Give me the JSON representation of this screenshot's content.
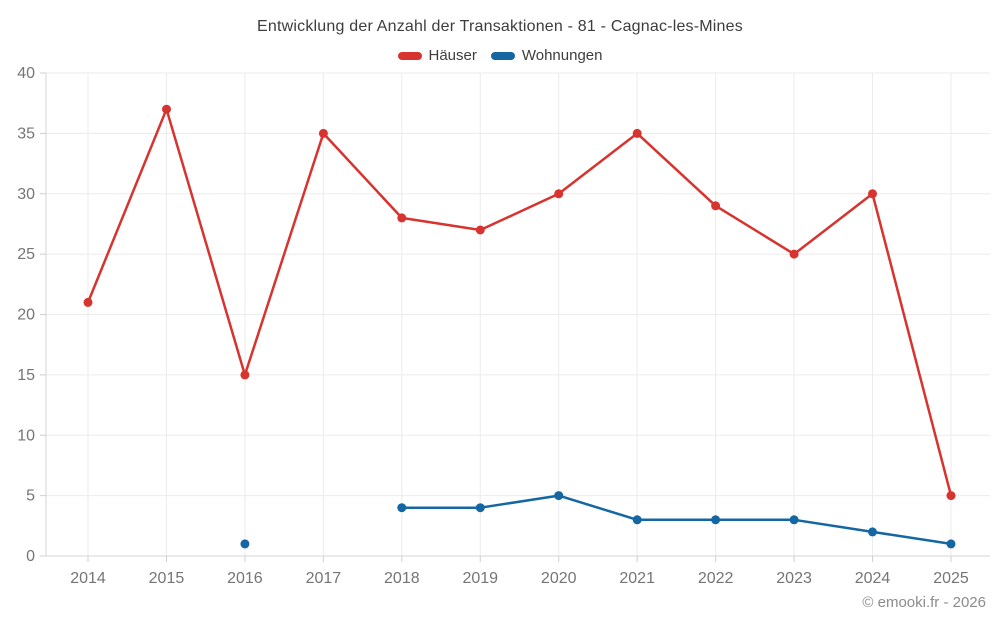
{
  "chart_data": {
    "type": "line",
    "title": "Entwicklung der Anzahl der Transaktionen - 81 - Cagnac-les-Mines",
    "categories": [
      "2014",
      "2015",
      "2016",
      "2017",
      "2018",
      "2019",
      "2020",
      "2021",
      "2022",
      "2023",
      "2024",
      "2025"
    ],
    "series": [
      {
        "name": "Häuser",
        "color": "#d7332f",
        "values": [
          21,
          37,
          15,
          35,
          28,
          27,
          30,
          35,
          29,
          25,
          30,
          5
        ]
      },
      {
        "name": "Wohnungen",
        "color": "#1467a2",
        "values": [
          null,
          null,
          1,
          null,
          4,
          4,
          5,
          3,
          3,
          3,
          2,
          1
        ]
      }
    ],
    "xlabel": "",
    "ylabel": "",
    "ylim": [
      0,
      40
    ],
    "ytick_step": 5,
    "yticks": [
      0,
      5,
      10,
      15,
      20,
      25,
      30,
      35,
      40
    ],
    "grid": true,
    "legend_position": "top"
  },
  "colors": {
    "grid_line": "#ebebeb",
    "axis_line": "#d6d6d6",
    "tick_mark": "#cfcfcf",
    "tick_label": "#757575",
    "title_text": "#3d3d3d",
    "footer_text": "#8c8c8c",
    "background": "#ffffff"
  },
  "footer": {
    "text": "© emooki.fr - 2026"
  }
}
